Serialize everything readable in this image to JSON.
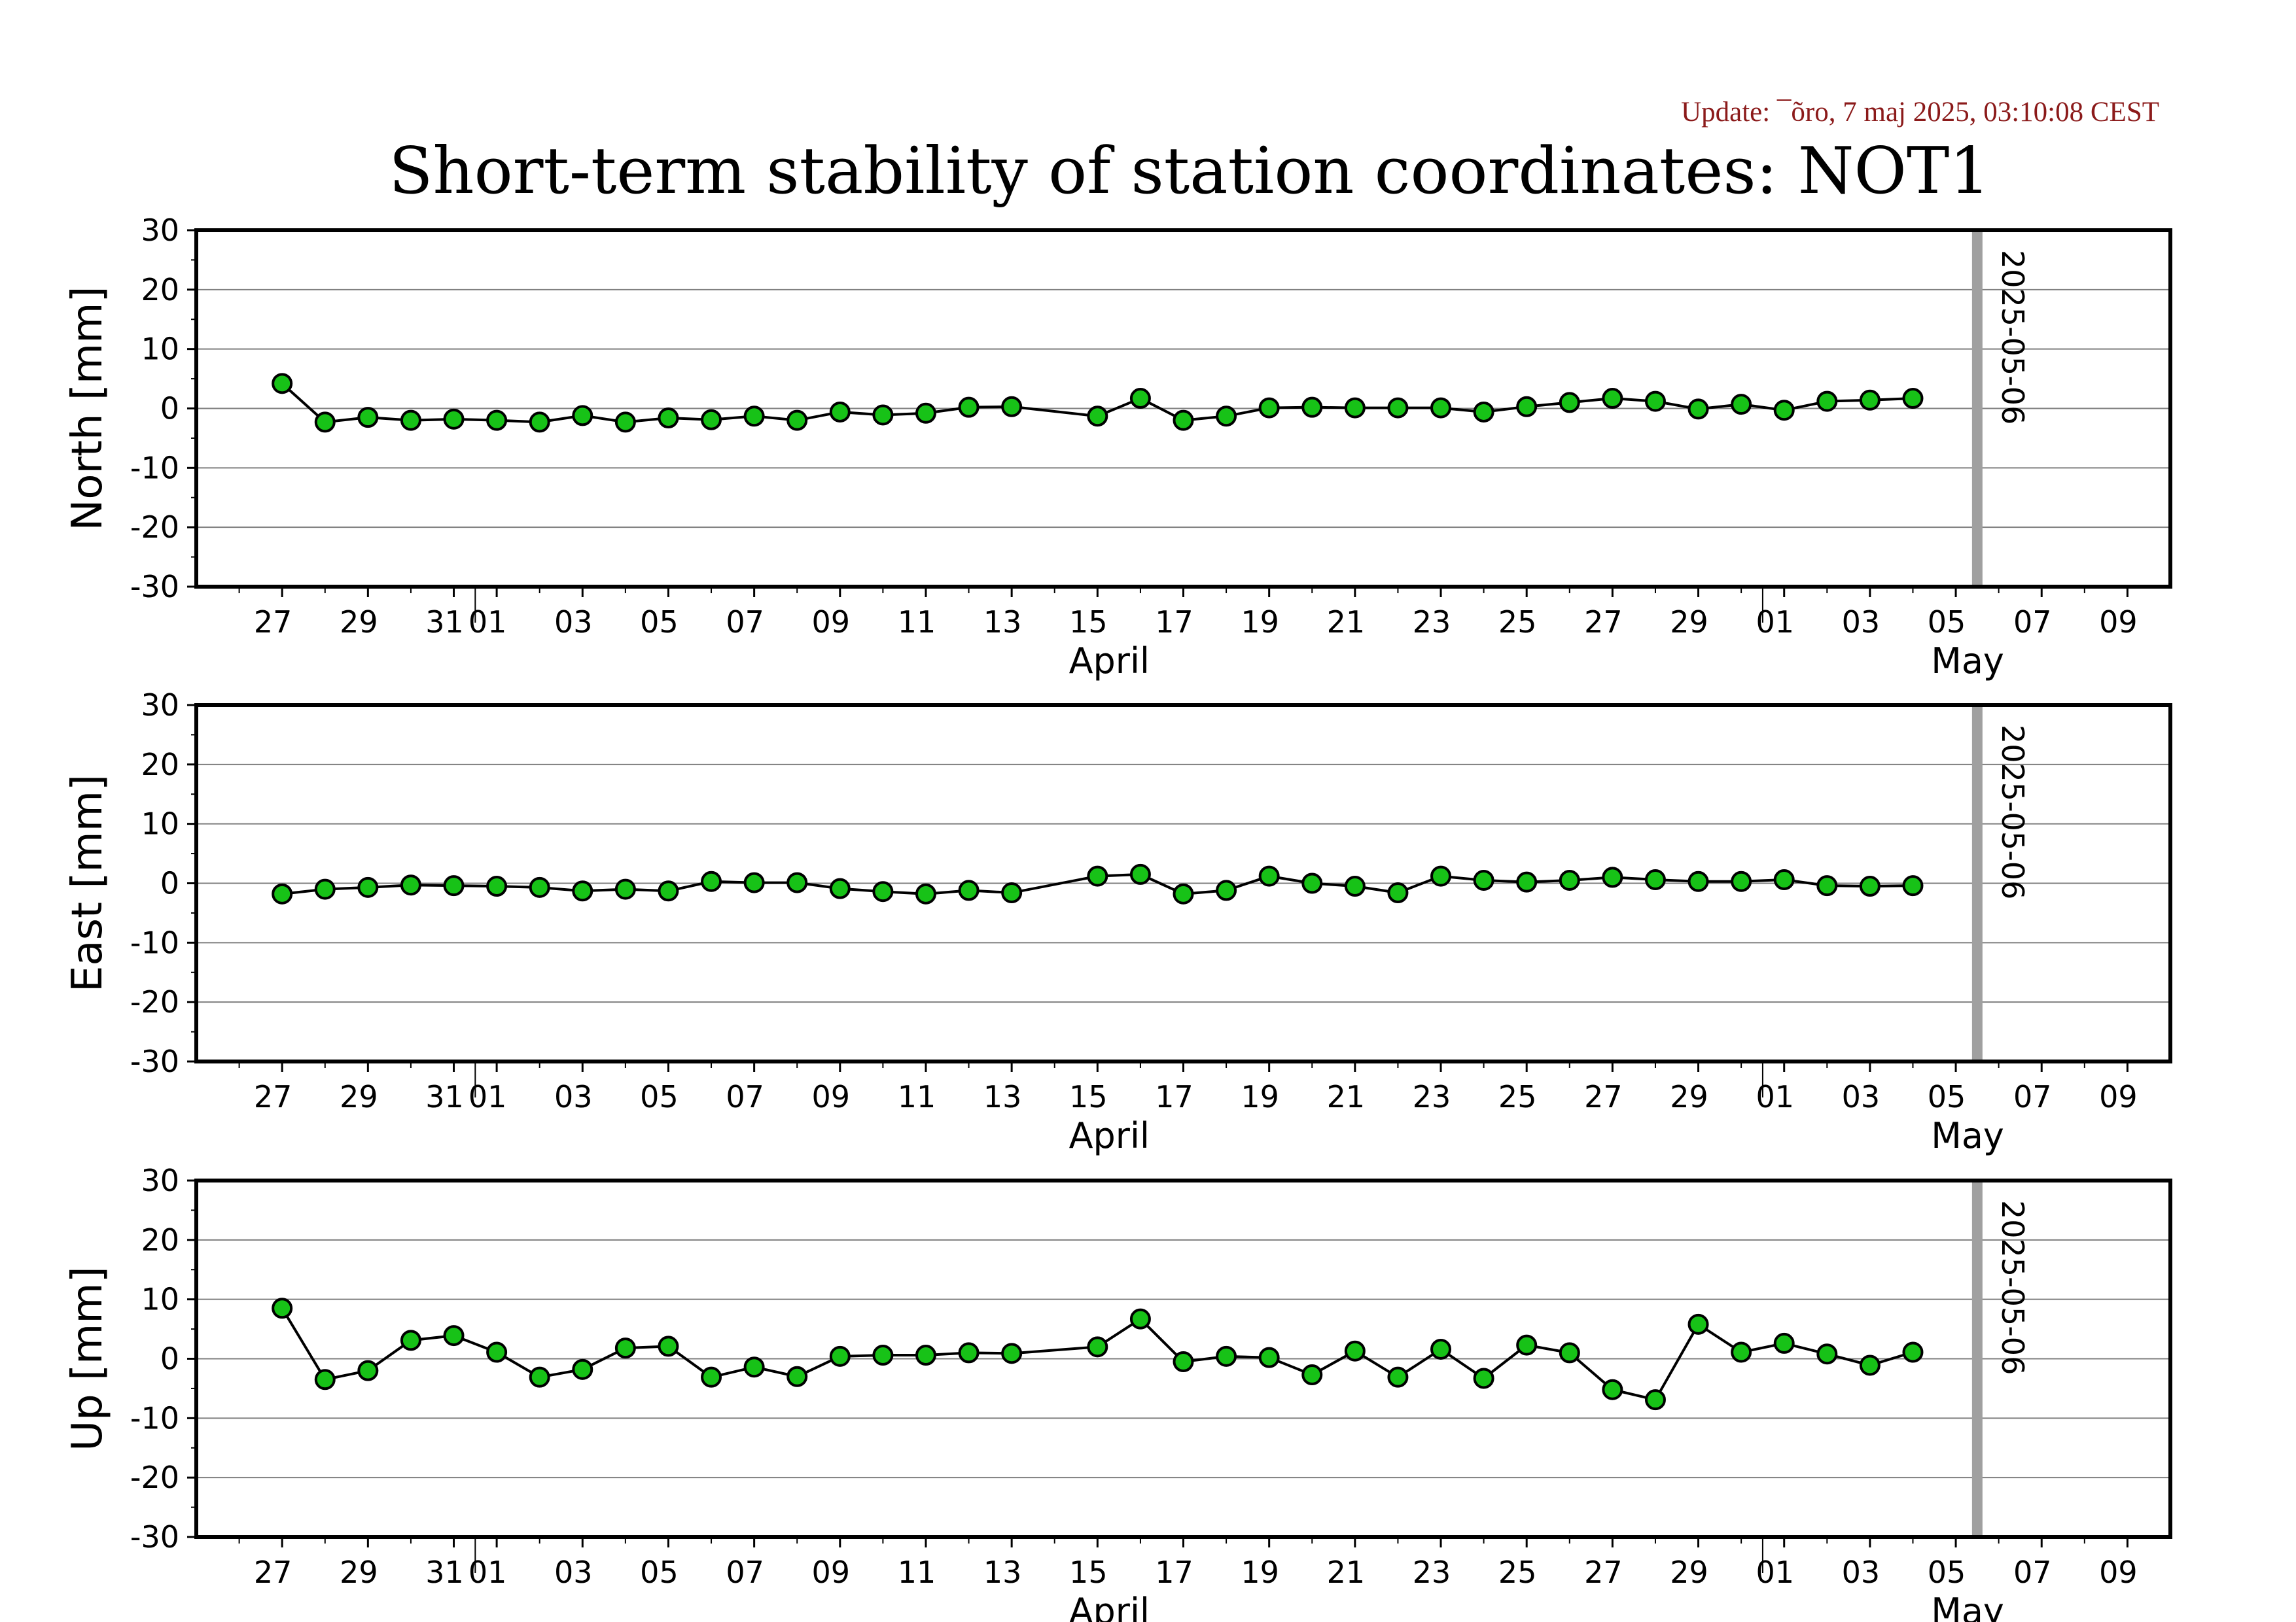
{
  "update_text": "Update: ¯õro, 7 maj 2025, 03:10:08 CEST",
  "title": "Short-term stability of station coordinates: NOT1",
  "colors": {
    "marker_fill": "#17c217",
    "marker_stroke": "#000000",
    "line": "#000000",
    "grid": "#7f7f7f",
    "today_line": "#a0a0a0",
    "update_text": "#8b1a1a"
  },
  "chart_data": [
    {
      "type": "line",
      "ylabel": "North [mm]",
      "ylim": [
        -30,
        30
      ],
      "yticks": [
        "30",
        "20",
        "10",
        "0",
        "-10",
        "-20",
        "-30"
      ],
      "xlim": [
        "2025-03-25",
        "2025-05-10"
      ],
      "x_tick_labels": [
        "27",
        "29",
        "31",
        "01",
        "03",
        "05",
        "07",
        "09",
        "11",
        "13",
        "15",
        "17",
        "19",
        "21",
        "23",
        "25",
        "27",
        "29",
        "01",
        "03",
        "05",
        "07",
        "09"
      ],
      "month_labels": [
        "April",
        "May"
      ],
      "marker_label": "2025-05-06",
      "grid": true,
      "x": [
        "2025-03-27",
        "2025-03-28",
        "2025-03-29",
        "2025-03-30",
        "2025-03-31",
        "2025-04-01",
        "2025-04-02",
        "2025-04-03",
        "2025-04-04",
        "2025-04-05",
        "2025-04-06",
        "2025-04-07",
        "2025-04-08",
        "2025-04-09",
        "2025-04-10",
        "2025-04-11",
        "2025-04-12",
        "2025-04-13",
        "2025-04-15",
        "2025-04-16",
        "2025-04-17",
        "2025-04-18",
        "2025-04-19",
        "2025-04-20",
        "2025-04-21",
        "2025-04-22",
        "2025-04-23",
        "2025-04-24",
        "2025-04-25",
        "2025-04-26",
        "2025-04-27",
        "2025-04-28",
        "2025-04-29",
        "2025-04-30",
        "2025-05-01",
        "2025-05-02",
        "2025-05-03",
        "2025-05-04"
      ],
      "y": [
        4.2,
        -2.3,
        -1.5,
        -2.0,
        -1.8,
        -2.0,
        -2.3,
        -1.2,
        -2.3,
        -1.6,
        -1.9,
        -1.3,
        -2.0,
        -0.6,
        -1.1,
        -0.8,
        0.2,
        0.3,
        -1.3,
        1.7,
        -2.0,
        -1.3,
        0.1,
        0.2,
        0.1,
        0.1,
        0.1,
        -0.6,
        0.3,
        1.0,
        1.7,
        1.2,
        -0.1,
        0.7,
        -0.3,
        1.2,
        1.4,
        1.7
      ]
    },
    {
      "type": "line",
      "ylabel": "East [mm]",
      "ylim": [
        -30,
        30
      ],
      "yticks": [
        "30",
        "20",
        "10",
        "0",
        "-10",
        "-20",
        "-30"
      ],
      "xlim": [
        "2025-03-25",
        "2025-05-10"
      ],
      "x_tick_labels": [
        "27",
        "29",
        "31",
        "01",
        "03",
        "05",
        "07",
        "09",
        "11",
        "13",
        "15",
        "17",
        "19",
        "21",
        "23",
        "25",
        "27",
        "29",
        "01",
        "03",
        "05",
        "07",
        "09"
      ],
      "month_labels": [
        "April",
        "May"
      ],
      "marker_label": "2025-05-06",
      "grid": true,
      "x": [
        "2025-03-27",
        "2025-03-28",
        "2025-03-29",
        "2025-03-30",
        "2025-03-31",
        "2025-04-01",
        "2025-04-02",
        "2025-04-03",
        "2025-04-04",
        "2025-04-05",
        "2025-04-06",
        "2025-04-07",
        "2025-04-08",
        "2025-04-09",
        "2025-04-10",
        "2025-04-11",
        "2025-04-12",
        "2025-04-13",
        "2025-04-15",
        "2025-04-16",
        "2025-04-17",
        "2025-04-18",
        "2025-04-19",
        "2025-04-20",
        "2025-04-21",
        "2025-04-22",
        "2025-04-23",
        "2025-04-24",
        "2025-04-25",
        "2025-04-26",
        "2025-04-27",
        "2025-04-28",
        "2025-04-29",
        "2025-04-30",
        "2025-05-01",
        "2025-05-02",
        "2025-05-03",
        "2025-05-04"
      ],
      "y": [
        -1.8,
        -1.0,
        -0.7,
        -0.3,
        -0.4,
        -0.5,
        -0.7,
        -1.3,
        -1.0,
        -1.3,
        0.3,
        0.1,
        0.1,
        -0.9,
        -1.4,
        -1.8,
        -1.2,
        -1.6,
        1.2,
        1.5,
        -1.8,
        -1.2,
        1.2,
        0.0,
        -0.5,
        -1.6,
        1.2,
        0.5,
        0.2,
        0.5,
        1.0,
        0.6,
        0.3,
        0.3,
        0.6,
        -0.4,
        -0.5,
        -0.4
      ]
    },
    {
      "type": "line",
      "ylabel": "Up [mm]",
      "ylim": [
        -30,
        30
      ],
      "yticks": [
        "30",
        "20",
        "10",
        "0",
        "-10",
        "-20",
        "-30"
      ],
      "xlim": [
        "2025-03-25",
        "2025-05-10"
      ],
      "x_tick_labels": [
        "27",
        "29",
        "31",
        "01",
        "03",
        "05",
        "07",
        "09",
        "11",
        "13",
        "15",
        "17",
        "19",
        "21",
        "23",
        "25",
        "27",
        "29",
        "01",
        "03",
        "05",
        "07",
        "09"
      ],
      "month_labels": [
        "April",
        "May"
      ],
      "marker_label": "2025-05-06",
      "grid": true,
      "x": [
        "2025-03-27",
        "2025-03-28",
        "2025-03-29",
        "2025-03-30",
        "2025-03-31",
        "2025-04-01",
        "2025-04-02",
        "2025-04-03",
        "2025-04-04",
        "2025-04-05",
        "2025-04-06",
        "2025-04-07",
        "2025-04-08",
        "2025-04-09",
        "2025-04-10",
        "2025-04-11",
        "2025-04-12",
        "2025-04-13",
        "2025-04-15",
        "2025-04-16",
        "2025-04-17",
        "2025-04-18",
        "2025-04-19",
        "2025-04-20",
        "2025-04-21",
        "2025-04-22",
        "2025-04-23",
        "2025-04-24",
        "2025-04-25",
        "2025-04-26",
        "2025-04-27",
        "2025-04-28",
        "2025-04-29",
        "2025-04-30",
        "2025-05-01",
        "2025-05-02",
        "2025-05-03",
        "2025-05-04"
      ],
      "y": [
        8.5,
        -3.5,
        -2.0,
        3.1,
        3.9,
        1.1,
        -3.1,
        -1.8,
        1.8,
        2.1,
        -3.1,
        -1.4,
        -3.0,
        0.4,
        0.6,
        0.6,
        1.0,
        0.9,
        2.0,
        6.7,
        -0.5,
        0.4,
        0.2,
        -2.7,
        1.3,
        -3.1,
        1.6,
        -3.3,
        2.3,
        1.0,
        -5.2,
        -6.9,
        5.8,
        1.1,
        2.6,
        0.8,
        -1.1,
        1.1
      ]
    }
  ]
}
